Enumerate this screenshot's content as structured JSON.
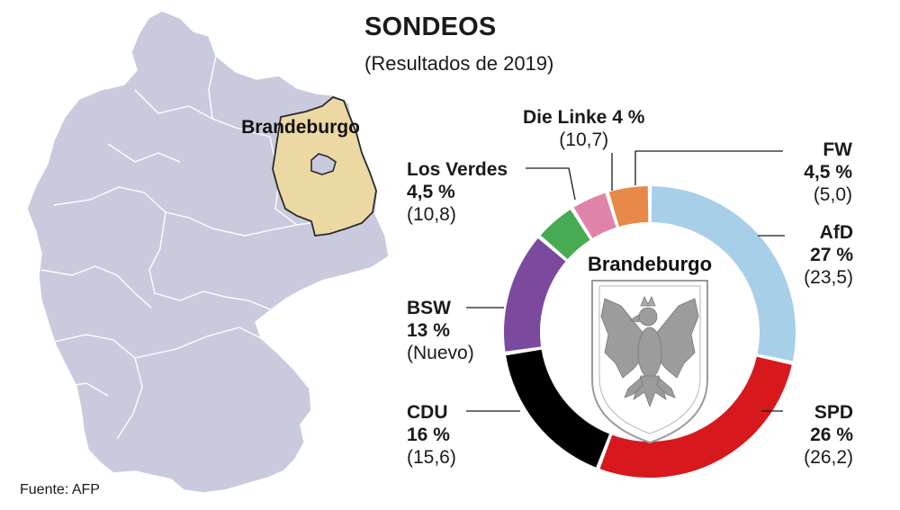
{
  "header": {
    "title": "SONDEOS",
    "subtitle": "(Resultados de 2019)"
  },
  "map": {
    "region_label": "Brandeburgo",
    "region_color": "#ecd8a3",
    "country_color": "#c9cade"
  },
  "source": "Fuente: AFP",
  "chart_data": {
    "type": "pie",
    "subtype": "donut",
    "title": "SONDEOS",
    "subtitle": "(Resultados de 2019)",
    "center_label": "Brandeburgo",
    "unit": "%",
    "slices": [
      {
        "name": "AfD",
        "value": 27,
        "value_label": "27 %",
        "previous": "(23,5)",
        "color": "#a7cfe8"
      },
      {
        "name": "SPD",
        "value": 26,
        "value_label": "26 %",
        "previous": "(26,2)",
        "color": "#d7191e"
      },
      {
        "name": "CDU",
        "value": 16,
        "value_label": "16 %",
        "previous": "(15,6)",
        "color": "#000000"
      },
      {
        "name": "BSW",
        "value": 13,
        "value_label": "13 %",
        "previous": "(Nuevo)",
        "color": "#7b4a9e"
      },
      {
        "name": "Los Verdes",
        "value": 4.5,
        "value_label": "4,5 %",
        "previous": "(10,8)",
        "color": "#46ab52"
      },
      {
        "name": "Die Linke",
        "value": 4,
        "value_label": "4 %",
        "previous": "(10,7)",
        "color": "#e083a8"
      },
      {
        "name": "FW",
        "value": 4.5,
        "value_label": "4,5 %",
        "previous": "(5,0)",
        "color": "#e8894a"
      }
    ]
  }
}
